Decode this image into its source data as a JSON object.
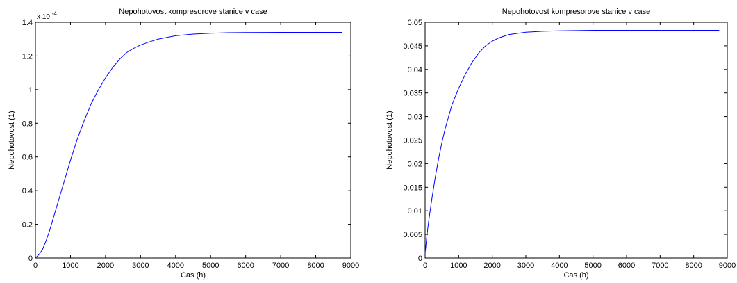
{
  "chart_data": [
    {
      "type": "line",
      "title": "Nepohotovost kompresorove stanice v case",
      "xlabel": "Cas (h)",
      "ylabel": "Nepohotovost (1)",
      "exponent_label": "x 10",
      "exponent_power": "-4",
      "xlim": [
        0,
        9000
      ],
      "ylim": [
        0,
        1.4
      ],
      "xticks": [
        0,
        1000,
        2000,
        3000,
        4000,
        5000,
        6000,
        7000,
        8000,
        9000
      ],
      "xtick_labels": [
        "0",
        "1000",
        "2000",
        "3000",
        "4000",
        "5000",
        "6000",
        "7000",
        "8000",
        "9000"
      ],
      "yticks": [
        0,
        0.2,
        0.4,
        0.6,
        0.8,
        1.0,
        1.2,
        1.4
      ],
      "ytick_labels": [
        "0",
        "0.2",
        "0.4",
        "0.6",
        "0.8",
        "1",
        "1.2",
        "1.4"
      ],
      "grid": false,
      "series": [
        {
          "color": "#0000ff",
          "x": [
            0,
            100,
            200,
            300,
            400,
            500,
            600,
            700,
            800,
            900,
            1000,
            1200,
            1400,
            1600,
            1800,
            2000,
            2200,
            2400,
            2600,
            2800,
            3000,
            3200,
            3500,
            4000,
            4500,
            5000,
            5500,
            6000,
            7000,
            8000,
            8760
          ],
          "y": [
            0,
            0.02,
            0.05,
            0.1,
            0.16,
            0.23,
            0.3,
            0.37,
            0.44,
            0.51,
            0.58,
            0.71,
            0.82,
            0.92,
            1.0,
            1.07,
            1.13,
            1.18,
            1.22,
            1.245,
            1.265,
            1.28,
            1.3,
            1.32,
            1.33,
            1.335,
            1.338,
            1.339,
            1.34,
            1.34,
            1.34
          ]
        }
      ]
    },
    {
      "type": "line",
      "title": "Nepohotovost kompresorove stanice v case",
      "xlabel": "Cas (h)",
      "ylabel": "Nepohotovost (1)",
      "xlim": [
        0,
        9000
      ],
      "ylim": [
        0,
        0.05
      ],
      "xticks": [
        0,
        1000,
        2000,
        3000,
        4000,
        5000,
        6000,
        7000,
        8000,
        9000
      ],
      "xtick_labels": [
        "0",
        "1000",
        "2000",
        "3000",
        "4000",
        "5000",
        "6000",
        "7000",
        "8000",
        "9000"
      ],
      "yticks": [
        0,
        0.005,
        0.01,
        0.015,
        0.02,
        0.025,
        0.03,
        0.035,
        0.04,
        0.045,
        0.05
      ],
      "ytick_labels": [
        "0",
        "0.005",
        "0.01",
        "0.015",
        "0.02",
        "0.025",
        "0.03",
        "0.035",
        "0.04",
        "0.045",
        "0.05"
      ],
      "grid": false,
      "series": [
        {
          "color": "#0000ff",
          "x": [
            0,
            50,
            100,
            200,
            300,
            400,
            500,
            600,
            800,
            1000,
            1200,
            1400,
            1600,
            1800,
            2000,
            2200,
            2500,
            3000,
            3500,
            4000,
            5000,
            6000,
            7000,
            8000,
            8760
          ],
          "y": [
            0.001,
            0.0045,
            0.0075,
            0.0125,
            0.017,
            0.021,
            0.0245,
            0.0275,
            0.0325,
            0.036,
            0.039,
            0.0415,
            0.0435,
            0.045,
            0.046,
            0.0467,
            0.0474,
            0.0479,
            0.0481,
            0.0482,
            0.0483,
            0.0483,
            0.0483,
            0.0483,
            0.0483
          ]
        }
      ]
    }
  ]
}
